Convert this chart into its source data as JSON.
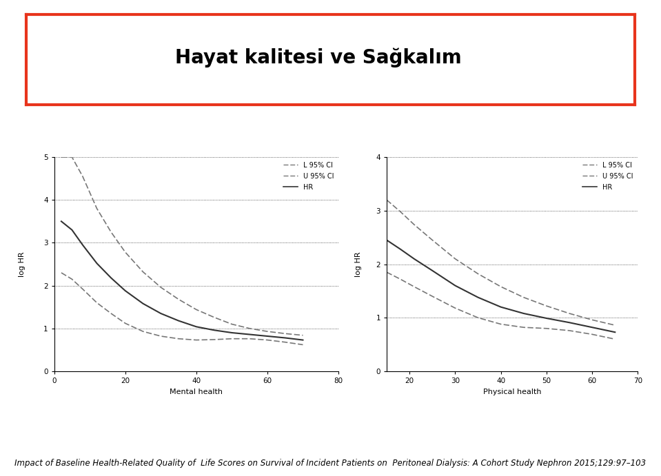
{
  "title": "Hayat kalitesi ve Sağkalım",
  "title_fontsize": 20,
  "title_fontweight": "bold",
  "title_color": "#000000",
  "border_color": "#e8341c",
  "border_linewidth": 3,
  "footer_text": "Impact of Baseline Health-Related Quality of  Life Scores on Survival of Incident Patients on  Peritoneal Dialysis: A Cohort Study Nephron 2015;129:97–103",
  "footer_fontsize": 8.5,
  "plot1": {
    "xlabel": "Mental health",
    "ylabel": "log HR",
    "xlim": [
      0,
      80
    ],
    "ylim": [
      0,
      5
    ],
    "xticks": [
      0,
      20,
      40,
      60,
      80
    ],
    "yticks": [
      0,
      1,
      2,
      3,
      4,
      5
    ],
    "x_hr": [
      2,
      5,
      8,
      12,
      16,
      20,
      25,
      30,
      35,
      40,
      45,
      50,
      55,
      60,
      65,
      70
    ],
    "y_hr": [
      3.5,
      3.3,
      2.95,
      2.52,
      2.18,
      1.88,
      1.58,
      1.35,
      1.18,
      1.04,
      0.96,
      0.9,
      0.86,
      0.82,
      0.78,
      0.73
    ],
    "x_l95": [
      2,
      5,
      8,
      12,
      16,
      20,
      25,
      30,
      35,
      40,
      45,
      50,
      55,
      60,
      65,
      70
    ],
    "y_l95": [
      2.3,
      2.15,
      1.92,
      1.6,
      1.35,
      1.12,
      0.93,
      0.82,
      0.76,
      0.73,
      0.74,
      0.76,
      0.76,
      0.73,
      0.68,
      0.62
    ],
    "x_u95": [
      2,
      5,
      8,
      12,
      16,
      20,
      25,
      30,
      35,
      40,
      45,
      50,
      55,
      60,
      65,
      70
    ],
    "y_u95": [
      5.0,
      5.0,
      4.55,
      3.8,
      3.25,
      2.78,
      2.32,
      1.96,
      1.68,
      1.44,
      1.26,
      1.1,
      1.0,
      0.93,
      0.88,
      0.84
    ],
    "hr_color": "#333333",
    "ci_color": "#777777",
    "line_width": 1.2
  },
  "plot2": {
    "xlabel": "Physical health",
    "ylabel": "log HR",
    "xlim": [
      15,
      70
    ],
    "ylim": [
      0,
      4
    ],
    "xticks": [
      20,
      30,
      40,
      50,
      60,
      70
    ],
    "yticks": [
      0,
      1,
      2,
      3,
      4
    ],
    "x_hr": [
      15,
      18,
      21,
      25,
      30,
      35,
      40,
      45,
      50,
      55,
      60,
      65
    ],
    "y_hr": [
      2.45,
      2.28,
      2.1,
      1.88,
      1.6,
      1.38,
      1.2,
      1.08,
      0.99,
      0.91,
      0.82,
      0.73
    ],
    "x_l95": [
      15,
      18,
      21,
      25,
      30,
      35,
      40,
      45,
      50,
      55,
      60,
      65
    ],
    "y_l95": [
      1.85,
      1.72,
      1.58,
      1.4,
      1.18,
      1.0,
      0.88,
      0.82,
      0.8,
      0.76,
      0.69,
      0.6
    ],
    "x_u95": [
      15,
      18,
      21,
      25,
      30,
      35,
      40,
      45,
      50,
      55,
      60,
      65
    ],
    "y_u95": [
      3.2,
      2.98,
      2.74,
      2.45,
      2.1,
      1.82,
      1.58,
      1.38,
      1.22,
      1.08,
      0.96,
      0.86
    ],
    "hr_color": "#333333",
    "ci_color": "#777777",
    "line_width": 1.2
  }
}
